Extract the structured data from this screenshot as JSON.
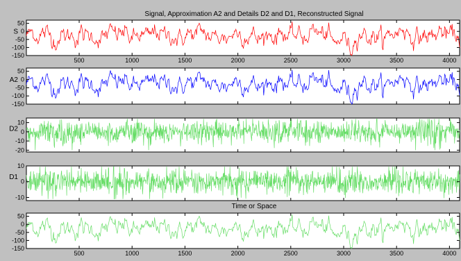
{
  "figure": {
    "title": "Signal, Approximation A2 and Details D2 and D1, Reconstructed Signal",
    "xlabel": "Time or Space",
    "background_color": "#c0c0c0",
    "axes_color": "#ffffff"
  },
  "chart_data": [
    {
      "type": "line",
      "ylabel": "S",
      "xlim": [
        1,
        4096
      ],
      "ylim": [
        -150,
        70
      ],
      "yticks": [
        50,
        0,
        -50,
        -100,
        -150
      ],
      "yticklabels": [
        "50",
        "0",
        "-50",
        "-100",
        "-150"
      ],
      "xticks": [
        500,
        1000,
        1500,
        2000,
        2500,
        3000,
        3500,
        4000
      ],
      "xticklabels": [
        "500",
        "1000",
        "1500",
        "2000",
        "2500",
        "3000",
        "3500",
        "4000"
      ],
      "color": "#ff0000"
    },
    {
      "type": "line",
      "ylabel": "A2",
      "xlim": [
        1,
        4096
      ],
      "ylim": [
        -150,
        70
      ],
      "yticks": [
        50,
        0,
        -50,
        -100,
        -150
      ],
      "yticklabels": [
        "50",
        "0",
        "-50",
        "-100",
        "-150"
      ],
      "xticks": [],
      "xticklabels": [],
      "color": "#0000ff"
    },
    {
      "type": "line",
      "ylabel": "D2",
      "xlim": [
        1,
        4096
      ],
      "ylim": [
        -22,
        15
      ],
      "yticks": [
        10,
        0,
        -10,
        -20
      ],
      "yticklabels": [
        "10",
        "0",
        "-10",
        "-20"
      ],
      "xticks": [],
      "xticklabels": [],
      "color": "#66dd66"
    },
    {
      "type": "line",
      "ylabel": "D1",
      "xlim": [
        1,
        4096
      ],
      "ylim": [
        -12,
        10
      ],
      "yticks": [
        10,
        0,
        -10
      ],
      "yticklabels": [
        "10",
        "0",
        "-10"
      ],
      "xticks": [],
      "xticklabels": [],
      "color": "#66dd66"
    },
    {
      "type": "line",
      "ylabel": "",
      "xlim": [
        1,
        4096
      ],
      "ylim": [
        -150,
        70
      ],
      "yticks": [
        50,
        0,
        -50,
        -100,
        -150
      ],
      "yticklabels": [
        "50",
        "0",
        "-50",
        "-100",
        "-150"
      ],
      "xticks": [
        500,
        1000,
        1500,
        2000,
        2500,
        3000,
        3500,
        4000
      ],
      "xticklabels": [
        "500",
        "1000",
        "1500",
        "2000",
        "2500",
        "3000",
        "3500",
        "4000"
      ],
      "color": "#66dd66"
    }
  ]
}
